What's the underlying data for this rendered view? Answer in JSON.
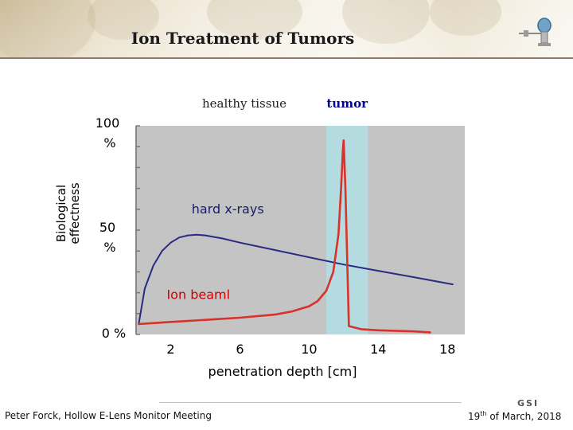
{
  "slide": {
    "title": "Ion Treatment of Tumors",
    "footer_left": "Peter Forck, Hollow E-Lens Monitor Meeting",
    "footer_right_day": "19",
    "footer_right_suffix": "th",
    "footer_right_rest": " of March, 2018",
    "logo_text": "GSI"
  },
  "chart_data": {
    "type": "line",
    "xlabel": "penetration depth [cm]",
    "ylabel_line1": "Biological",
    "ylabel_line2": "effectness",
    "xlim": [
      0,
      19
    ],
    "ylim": [
      0,
      100
    ],
    "x_ticks": [
      2,
      6,
      10,
      14,
      18
    ],
    "y_ticks": [
      {
        "value": 0,
        "line1": "0 %",
        "line2": ""
      },
      {
        "value": 50,
        "line1": "50",
        "line2": "%"
      },
      {
        "value": 100,
        "line1": "100",
        "line2": "%"
      }
    ],
    "regions": [
      {
        "label": "healthy tissue",
        "from": 0,
        "to": 11,
        "color": "#c4c4c4",
        "label_color": "#222222"
      },
      {
        "label": "tumor",
        "from": 11,
        "to": 13.4,
        "color": "#b3dbe0",
        "label_color": "#00008b"
      }
    ],
    "series": [
      {
        "name": "hard x-rays",
        "color": "#2a2a82",
        "x": [
          0.15,
          0.5,
          1,
          1.5,
          2,
          2.5,
          3,
          3.5,
          4,
          5,
          6,
          8,
          10,
          12,
          14,
          16,
          18.3
        ],
        "y": [
          5,
          22,
          33,
          40,
          44,
          46.5,
          47.5,
          47.8,
          47.5,
          46,
          44,
          40.5,
          37,
          33.5,
          30.5,
          27.5,
          24
        ]
      },
      {
        "name": "Ion beaml",
        "color": "#d8322a",
        "x": [
          0.15,
          2,
          4,
          6,
          8,
          9,
          10,
          10.5,
          11,
          11.4,
          11.7,
          11.85,
          11.95,
          12.0,
          12.1,
          12.3,
          13,
          14,
          16,
          17
        ],
        "y": [
          5,
          6,
          7,
          8,
          9.5,
          11,
          13.5,
          16,
          21,
          30,
          48,
          70,
          88,
          93,
          70,
          4,
          2.5,
          2,
          1.5,
          1
        ]
      }
    ],
    "annotations": [
      {
        "text": "hard x-rays",
        "x": 5.3,
        "y": 58,
        "color": "#1a1a6a"
      },
      {
        "text": "Ion beaml",
        "x": 3.6,
        "y": 17,
        "color": "#cc0000"
      }
    ],
    "grid": false,
    "legend": "none"
  }
}
